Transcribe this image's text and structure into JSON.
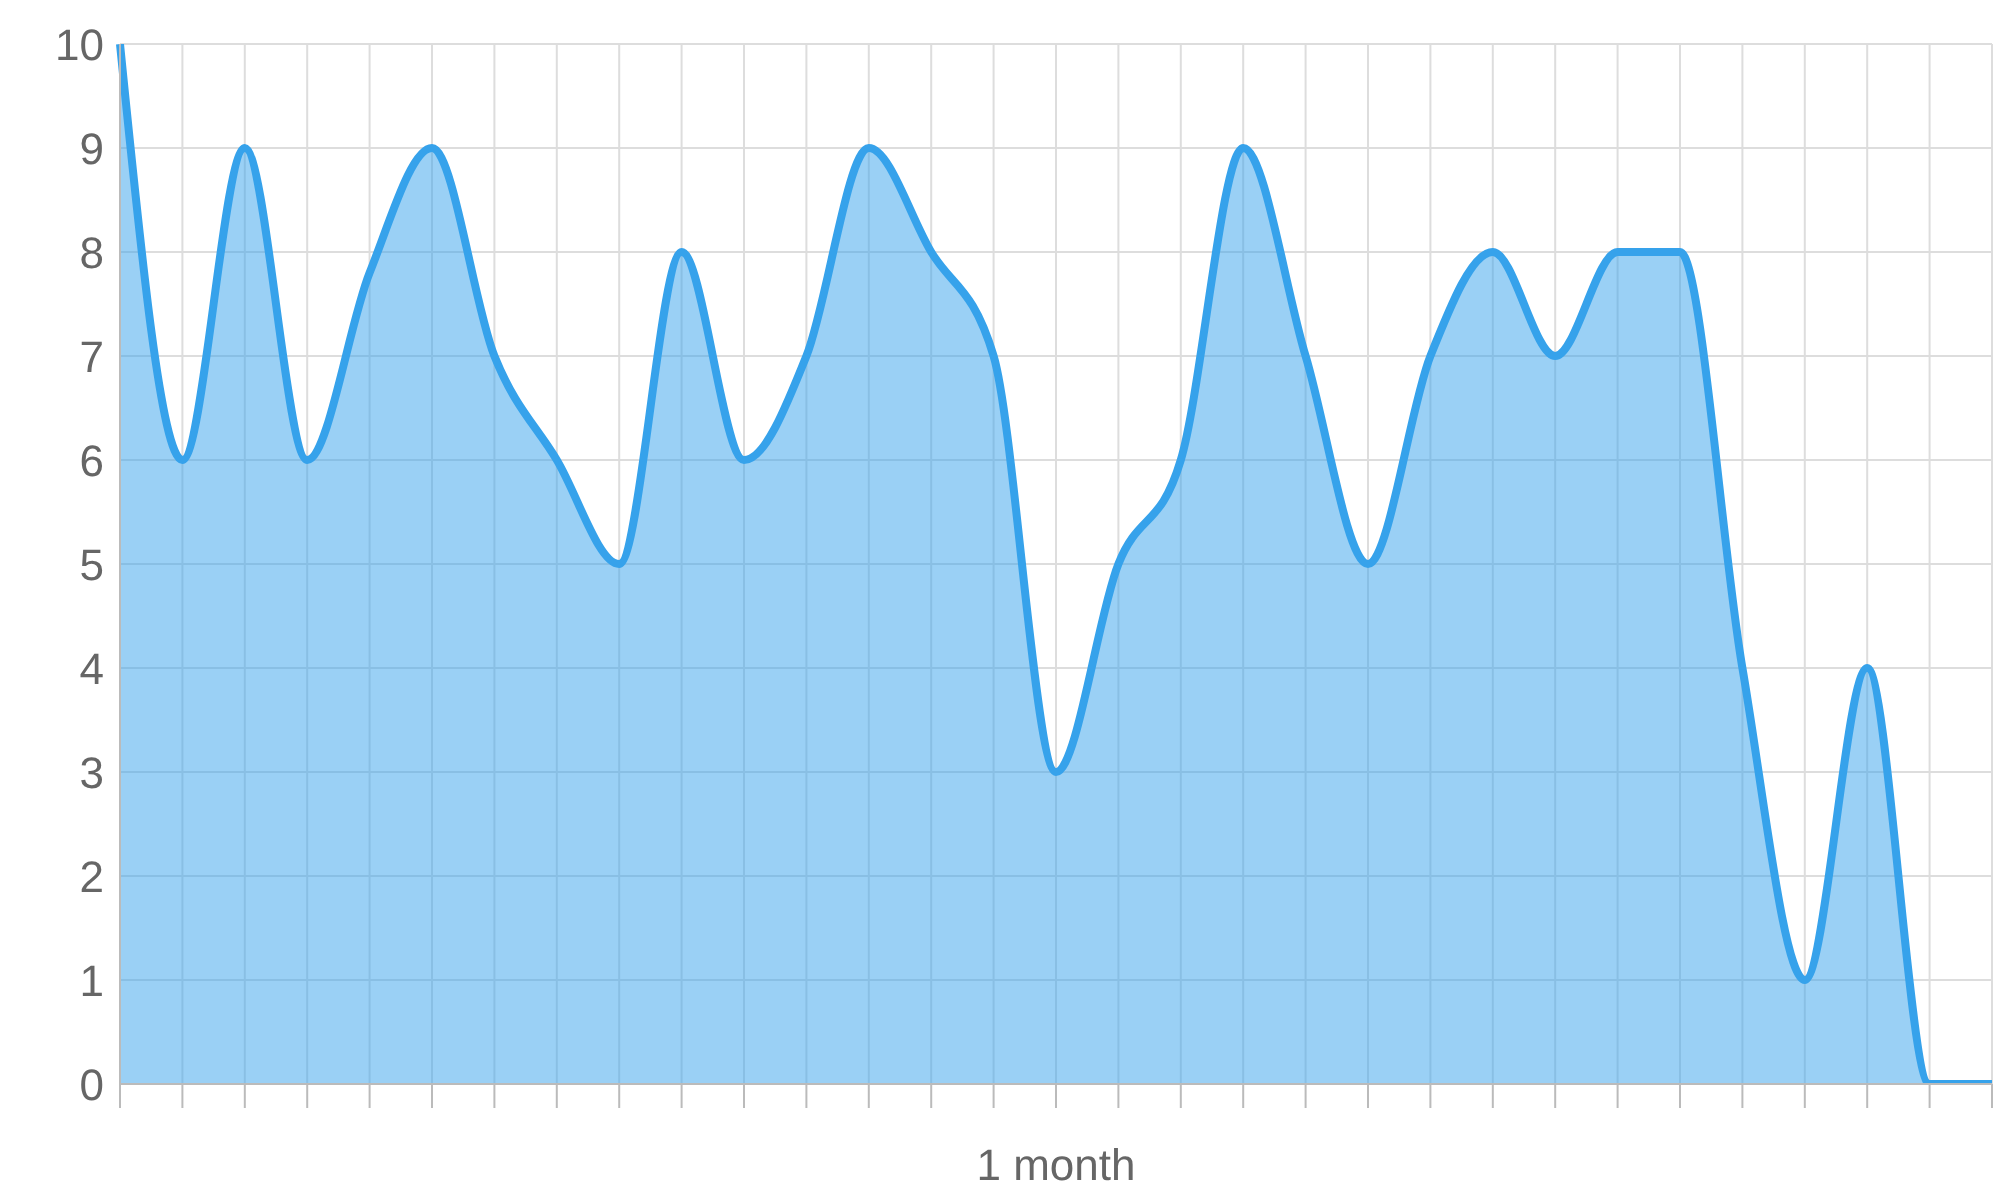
{
  "chart_data": {
    "type": "area",
    "xlabel": "1 month",
    "categories": [
      null,
      null,
      null,
      null,
      null,
      null,
      null,
      null,
      null,
      null,
      null,
      null,
      null,
      null,
      null,
      null,
      null,
      null,
      null,
      null,
      null,
      null,
      null,
      null,
      null,
      null,
      null,
      null,
      null,
      null,
      null
    ],
    "values": [
      10,
      6,
      9,
      6,
      7.8,
      9,
      7,
      6,
      5,
      8,
      6,
      7,
      9,
      8,
      7,
      3,
      5,
      6,
      9,
      7,
      5,
      7,
      8,
      7,
      8,
      8,
      4,
      1,
      4,
      0,
      0
    ],
    "color": "#36a2eb",
    "ylim": [
      0,
      10
    ],
    "yticks": [
      0,
      1,
      2,
      3,
      4,
      5,
      6,
      7,
      8,
      9,
      10
    ],
    "grid": true,
    "marker": "none"
  }
}
